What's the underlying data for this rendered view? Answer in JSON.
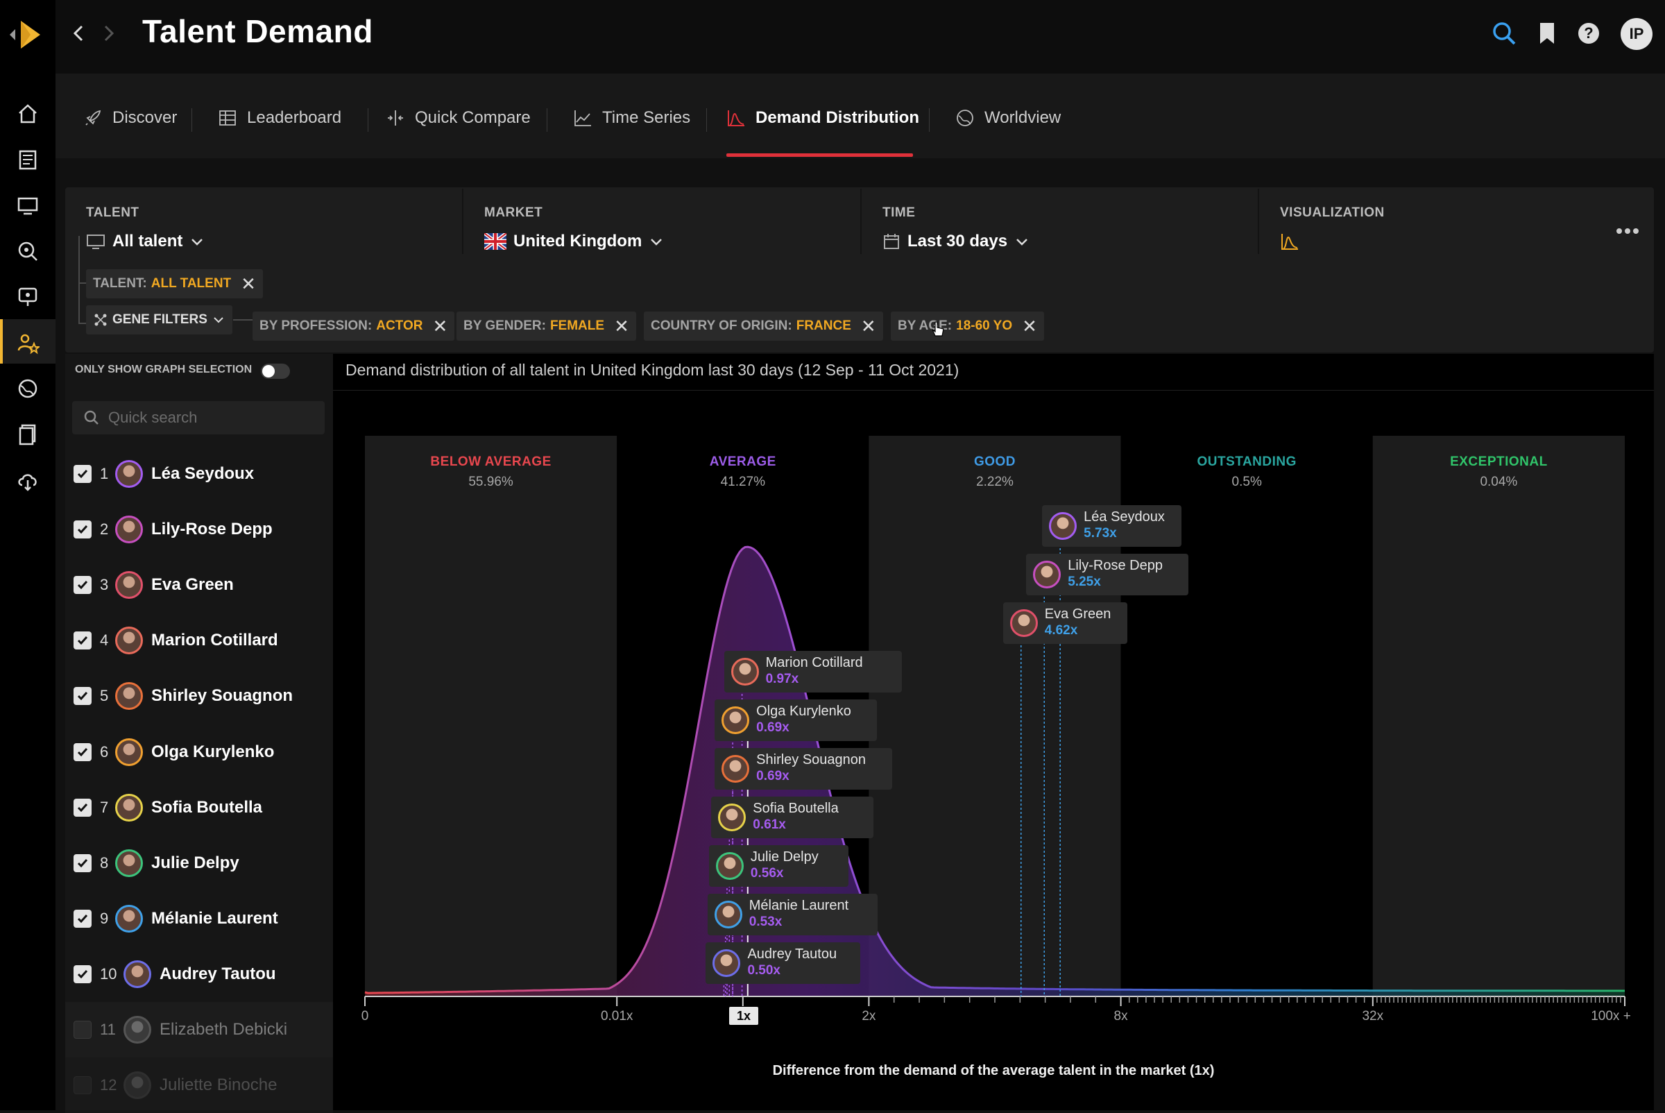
{
  "app": {
    "title": "Talent Demand",
    "user_initials": "IP"
  },
  "rail": {
    "items": [
      {
        "icon": "home-icon",
        "y": 160
      },
      {
        "icon": "news-icon",
        "y": 226
      },
      {
        "icon": "monitor-icon",
        "y": 292
      },
      {
        "icon": "explore-icon",
        "y": 358
      },
      {
        "icon": "signal-icon",
        "y": 424
      },
      {
        "icon": "talent-star-icon",
        "y": 490
      },
      {
        "icon": "globe-icon",
        "y": 556
      },
      {
        "icon": "documents-icon",
        "y": 622
      },
      {
        "icon": "cloud-download-icon",
        "y": 688
      }
    ]
  },
  "tabs": [
    {
      "label": "Discover",
      "icon": "rocket-icon"
    },
    {
      "label": "Leaderboard",
      "icon": "table-icon"
    },
    {
      "label": "Quick Compare",
      "icon": "compare-icon"
    },
    {
      "label": "Time Series",
      "icon": "line-chart-icon"
    },
    {
      "label": "Demand Distribution",
      "icon": "distribution-icon",
      "active": true
    },
    {
      "label": "Worldview",
      "icon": "globe-icon"
    }
  ],
  "filters": {
    "talent": {
      "title": "TALENT",
      "value": "All talent"
    },
    "market": {
      "title": "MARKET",
      "value": "United Kingdom"
    },
    "time": {
      "title": "TIME",
      "value": "Last 30 days"
    },
    "visualization": {
      "title": "VISUALIZATION"
    },
    "talent_chip": {
      "key": "TALENT:",
      "value": "ALL TALENT"
    },
    "gene_filters": "GENE FILTERS",
    "chips": [
      {
        "key": "BY PROFESSION:",
        "value": "ACTOR"
      },
      {
        "key": "BY GENDER:",
        "value": "FEMALE"
      },
      {
        "key": "COUNTRY OF ORIGIN:",
        "value": "FRANCE"
      },
      {
        "key": "BY AGE:",
        "value": "18-60 YO"
      }
    ]
  },
  "list": {
    "toggle_label": "ONLY SHOW GRAPH SELECTION",
    "toggle_on": false,
    "search_placeholder": "Quick search",
    "items": [
      {
        "rank": "1",
        "name": "Léa Seydoux",
        "checked": true,
        "ring": "#a25cf0"
      },
      {
        "rank": "2",
        "name": "Lily-Rose Depp",
        "checked": true,
        "ring": "#c64fc0"
      },
      {
        "rank": "3",
        "name": "Eva Green",
        "checked": true,
        "ring": "#e0506a"
      },
      {
        "rank": "4",
        "name": "Marion Cotillard",
        "checked": true,
        "ring": "#e86a5a"
      },
      {
        "rank": "5",
        "name": "Shirley Souagnon",
        "checked": true,
        "ring": "#e8703a"
      },
      {
        "rank": "6",
        "name": "Olga Kurylenko",
        "checked": true,
        "ring": "#f0a030"
      },
      {
        "rank": "7",
        "name": "Sofia Boutella",
        "checked": true,
        "ring": "#e6d24a"
      },
      {
        "rank": "8",
        "name": "Julie Delpy",
        "checked": true,
        "ring": "#3cc47c"
      },
      {
        "rank": "9",
        "name": "Mélanie Laurent",
        "checked": true,
        "ring": "#3fa0e8"
      },
      {
        "rank": "10",
        "name": "Audrey Tautou",
        "checked": true,
        "ring": "#6d6de8"
      },
      {
        "rank": "11",
        "name": "Elizabeth Debicki",
        "checked": false,
        "ring": "#555555"
      },
      {
        "rank": "12",
        "name": "Juliette Binoche",
        "checked": false,
        "ring": "#444444"
      }
    ]
  },
  "chart_data": {
    "type": "area",
    "caption": "Demand distribution of all talent in United Kingdom last 30 days (12 Sep - 11 Oct 2021)",
    "xlabel": "Difference from the demand of the average talent in the market (1x)",
    "x_scale": "log",
    "x_ticks": [
      "0",
      "0.01x",
      "1x",
      "2x",
      "8x",
      "32x",
      "100x +"
    ],
    "bands": [
      {
        "label": "BELOW AVERAGE",
        "percent": "55.96%",
        "color": "#e8474e"
      },
      {
        "label": "AVERAGE",
        "percent": "41.27%",
        "color": "#9c5ce8"
      },
      {
        "label": "GOOD",
        "percent": "2.22%",
        "color": "#3f9be6"
      },
      {
        "label": "OUTSTANDING",
        "percent": "0.5%",
        "color": "#2aa6a0"
      },
      {
        "label": "EXCEPTIONAL",
        "percent": "0.04%",
        "color": "#30c46a"
      }
    ],
    "talents": [
      {
        "name": "Léa Seydoux",
        "multiplier": "5.73x",
        "value": 5.73,
        "ring": "#a25cf0",
        "color": "#3fa0e8"
      },
      {
        "name": "Lily-Rose Depp",
        "multiplier": "5.25x",
        "value": 5.25,
        "ring": "#c64fc0",
        "color": "#3fa0e8"
      },
      {
        "name": "Eva Green",
        "multiplier": "4.62x",
        "value": 4.62,
        "ring": "#e0506a",
        "color": "#3fa0e8"
      },
      {
        "name": "Marion Cotillard",
        "multiplier": "0.97x",
        "value": 0.97,
        "ring": "#e86a5a",
        "color": "#a65cf0"
      },
      {
        "name": "Olga Kurylenko",
        "multiplier": "0.69x",
        "value": 0.69,
        "ring": "#f0a030",
        "color": "#a65cf0"
      },
      {
        "name": "Shirley Souagnon",
        "multiplier": "0.69x",
        "value": 0.69,
        "ring": "#e8703a",
        "color": "#a65cf0"
      },
      {
        "name": "Sofia Boutella",
        "multiplier": "0.61x",
        "value": 0.61,
        "ring": "#e6d24a",
        "color": "#a65cf0"
      },
      {
        "name": "Julie Delpy",
        "multiplier": "0.56x",
        "value": 0.56,
        "ring": "#3cc47c",
        "color": "#a65cf0"
      },
      {
        "name": "Mélanie Laurent",
        "multiplier": "0.53x",
        "value": 0.53,
        "ring": "#3fa0e8",
        "color": "#a65cf0"
      },
      {
        "name": "Audrey Tautou",
        "multiplier": "0.50x",
        "value": 0.5,
        "ring": "#6d6de8",
        "color": "#a65cf0"
      }
    ]
  }
}
